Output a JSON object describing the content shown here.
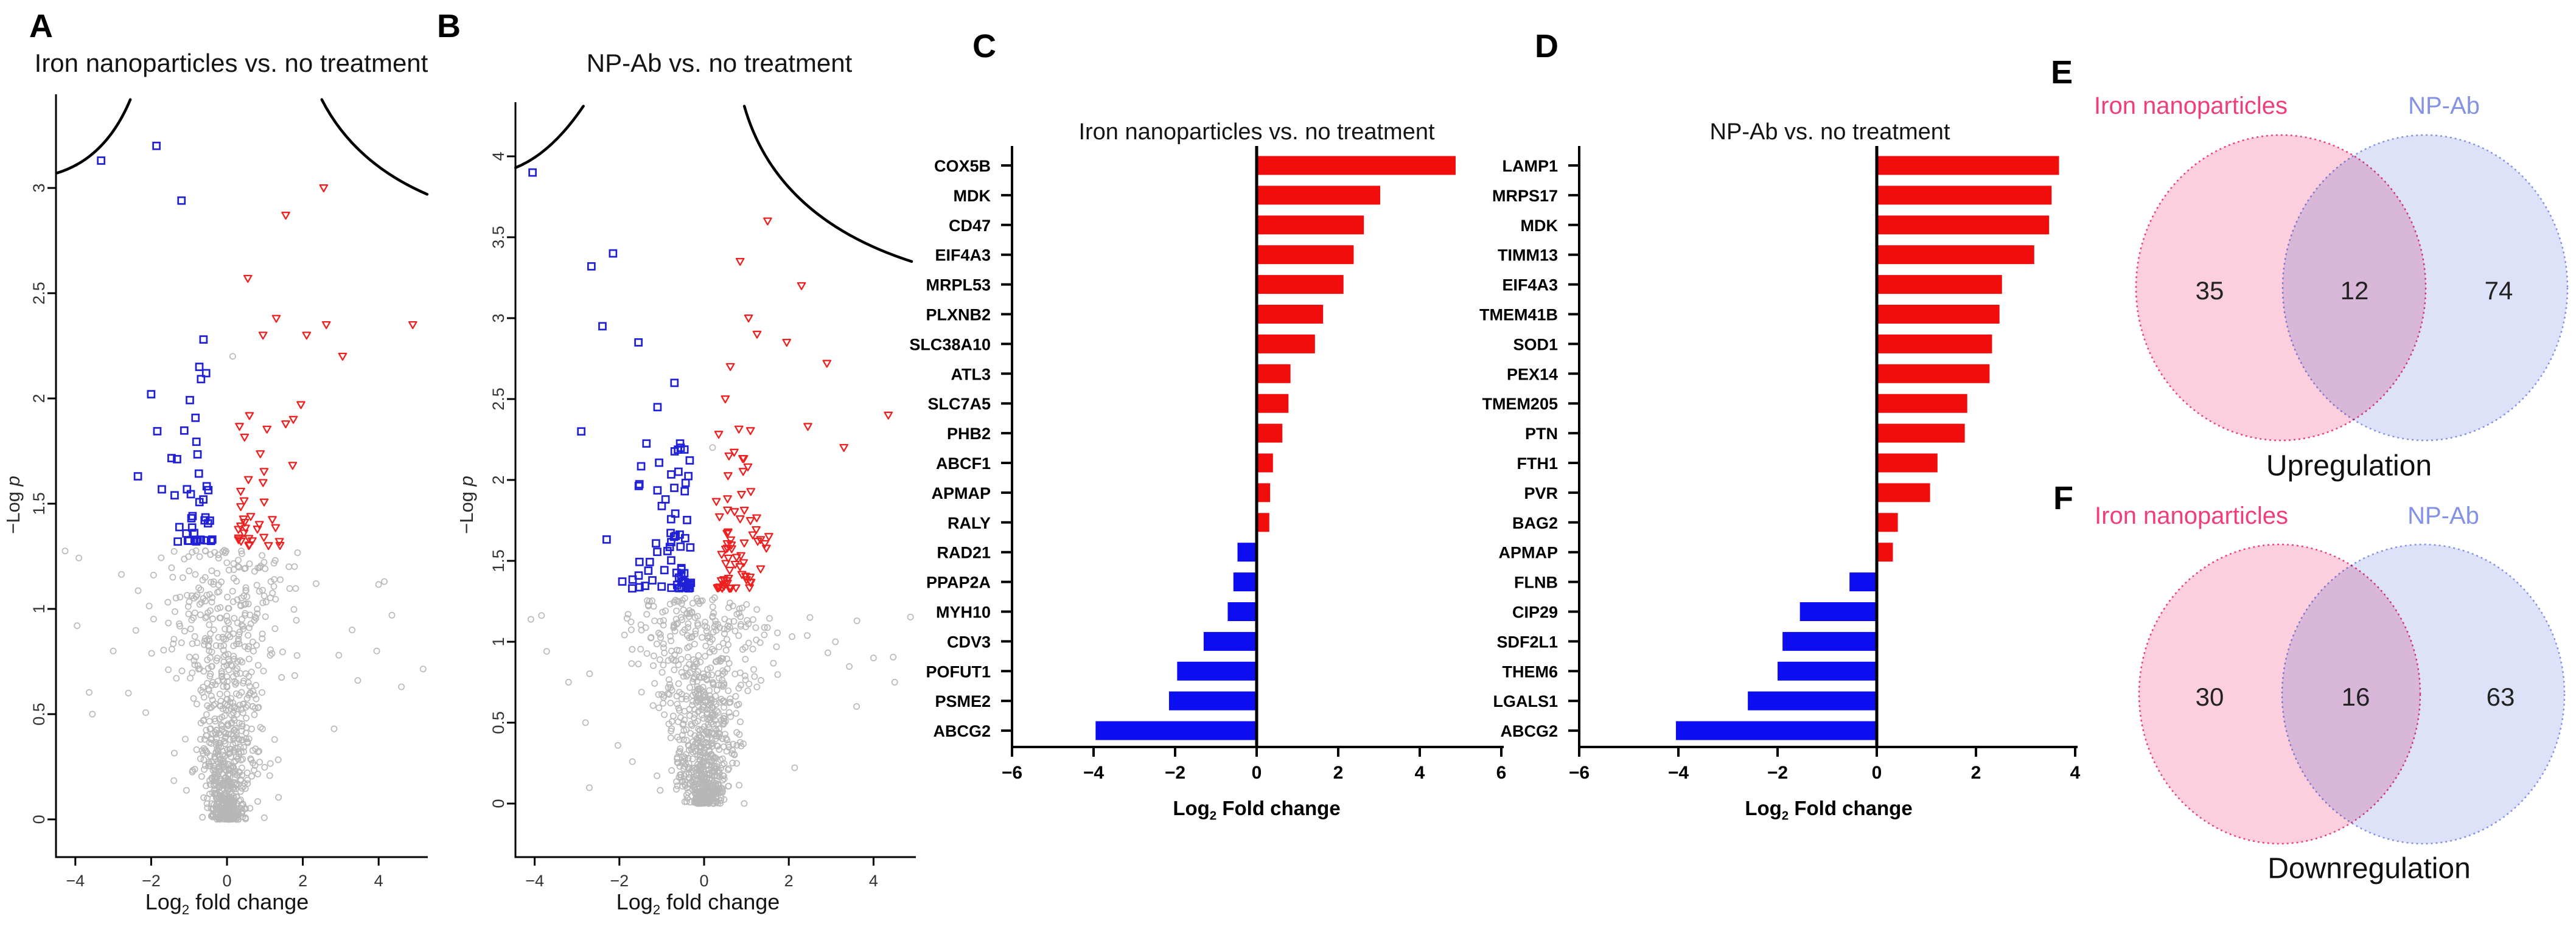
{
  "chart_data": [
    {
      "panel": "A",
      "type": "scatter",
      "subtype": "volcano",
      "title": "Iron nanoparticles vs. no treatment",
      "xlabel": "Log2 fold change",
      "xlabel_pre": "Log",
      "xlabel_sub": "2",
      "xlabel_post": " fold change",
      "ylabel": "-Log p",
      "ylabel_pre": "−Log ",
      "ylabel_it": "p",
      "xlim": [
        -4.5,
        5.3
      ],
      "ylim": [
        -0.18,
        3.44
      ],
      "x_ticks": [
        -4,
        -2,
        0,
        2,
        4
      ],
      "y_ticks": [
        0,
        0.5,
        1,
        1.5,
        2,
        2.5,
        3
      ],
      "grid": false,
      "legend": null,
      "threshold_curves": [
        {
          "p0": [
            -4.5,
            3.07
          ],
          "c": [
            -3.2,
            3.14
          ],
          "p1": [
            -2.55,
            3.42
          ]
        },
        {
          "p0": [
            2.5,
            3.42
          ],
          "c": [
            3.35,
            3.12
          ],
          "p1": [
            5.28,
            2.97
          ]
        }
      ],
      "series": [
        {
          "name": "downregulated-significant",
          "marker": "open-square",
          "color": "#2020d8",
          "count": 46,
          "gen": {
            "seed": 11,
            "off": 0.35,
            "sd": 0.62,
            "clip": [
              0.3,
              2.55
            ],
            "sign": -1,
            "y_base": 1.32,
            "y_pow": 2.3,
            "y_spread": 0.78
          },
          "points_extra": [
            [
              -3.32,
              3.13
            ],
            [
              -1.86,
              3.2
            ],
            [
              -1.2,
              2.94
            ],
            [
              -2.35,
              1.63
            ],
            [
              -2.0,
              2.02
            ],
            [
              -0.62,
              2.28
            ],
            [
              -0.73,
              2.15
            ],
            [
              -0.55,
              2.12
            ]
          ]
        },
        {
          "name": "upregulated-significant",
          "marker": "open-triangle-down",
          "color": "#ee2020",
          "count": 47,
          "gen": {
            "seed": 21,
            "off": 0.3,
            "sd": 0.55,
            "clip": [
              0.28,
              2.2
            ],
            "sign": 1,
            "y_base": 1.3,
            "y_pow": 2.3,
            "y_spread": 0.72
          },
          "points_extra": [
            [
              2.55,
              3.0
            ],
            [
              1.55,
              2.87
            ],
            [
              0.55,
              2.57
            ],
            [
              1.3,
              2.38
            ],
            [
              2.62,
              2.35
            ],
            [
              4.9,
              2.35
            ],
            [
              2.1,
              2.3
            ],
            [
              3.05,
              2.2
            ],
            [
              1.95,
              1.97
            ],
            [
              0.95,
              2.3
            ],
            [
              1.75,
              1.9
            ]
          ]
        },
        {
          "name": "not-significant",
          "marker": "open-circle",
          "color": "#b6b6b6",
          "count": 850,
          "gen": {
            "seed": 31,
            "funnel": true,
            "y_max": 1.28,
            "sd_base": 0.2,
            "sd_slope": 0.62,
            "outlier_frac": 0.06,
            "clip": [
              -4.35,
              5.2
            ]
          },
          "points_extra": [
            [
              0.15,
              2.2
            ],
            [
              2.35,
              1.12
            ],
            [
              4.35,
              0.97
            ],
            [
              3.95,
              0.8
            ],
            [
              4.6,
              0.63
            ],
            [
              3.45,
              0.66
            ],
            [
              2.95,
              0.78
            ],
            [
              -3.0,
              0.8
            ],
            [
              -3.55,
              0.5
            ],
            [
              4.15,
              1.13
            ],
            [
              -2.6,
              0.6
            ],
            [
              3.3,
              0.9
            ]
          ]
        }
      ]
    },
    {
      "panel": "B",
      "type": "scatter",
      "subtype": "volcano",
      "title": "NP-Ab vs. no treatment",
      "xlabel": "Log2 fold change",
      "xlabel_pre": "Log",
      "xlabel_sub": "2",
      "xlabel_post": " fold change",
      "ylabel": "-Log p",
      "ylabel_pre": "−Log ",
      "ylabel_it": "p",
      "xlim": [
        -4.45,
        5.0
      ],
      "ylim": [
        -0.33,
        4.33
      ],
      "x_ticks": [
        -4,
        -2,
        0,
        2,
        4
      ],
      "y_ticks": [
        0,
        0.5,
        1,
        1.5,
        2,
        2.5,
        3,
        3.5,
        4
      ],
      "grid": false,
      "legend": null,
      "threshold_curves": [
        {
          "p0": [
            -4.45,
            3.93
          ],
          "c": [
            -3.6,
            4.02
          ],
          "p1": [
            -2.85,
            4.31
          ]
        },
        {
          "p0": [
            0.95,
            4.31
          ],
          "c": [
            1.7,
            3.62
          ],
          "p1": [
            4.9,
            3.35
          ]
        }
      ],
      "series": [
        {
          "name": "downregulated-significant",
          "marker": "open-square",
          "color": "#2020d8",
          "count": 79,
          "gen": {
            "seed": 41,
            "off": 0.3,
            "sd": 0.72,
            "clip": [
              0.28,
              2.9
            ],
            "sign": -1,
            "y_base": 1.33,
            "y_pow": 2.4,
            "y_spread": 0.95
          },
          "points_extra": [
            [
              -4.05,
              3.9
            ],
            [
              -2.66,
              3.32
            ],
            [
              -2.15,
              3.4
            ],
            [
              -2.4,
              2.95
            ],
            [
              -1.55,
              2.85
            ],
            [
              -2.9,
              2.3
            ],
            [
              -0.7,
              2.6
            ],
            [
              -1.1,
              2.45
            ]
          ]
        },
        {
          "name": "upregulated-significant",
          "marker": "open-triangle-down",
          "color": "#ee2020",
          "count": 86,
          "gen": {
            "seed": 51,
            "off": 0.28,
            "sd": 0.6,
            "clip": [
              0.26,
              2.4
            ],
            "sign": 1,
            "y_base": 1.33,
            "y_pow": 2.4,
            "y_spread": 1.0
          },
          "points_extra": [
            [
              1.5,
              3.6
            ],
            [
              0.85,
              3.35
            ],
            [
              2.3,
              3.2
            ],
            [
              1.25,
              2.9
            ],
            [
              1.95,
              2.85
            ],
            [
              0.62,
              2.7
            ],
            [
              2.9,
              2.72
            ],
            [
              4.35,
              2.4
            ],
            [
              2.45,
              2.33
            ],
            [
              1.05,
              3.0
            ],
            [
              3.3,
              2.2
            ],
            [
              0.5,
              2.5
            ]
          ]
        },
        {
          "name": "not-significant",
          "marker": "open-circle",
          "color": "#b6b6b6",
          "count": 850,
          "gen": {
            "seed": 61,
            "funnel": true,
            "y_max": 1.28,
            "sd_base": 0.2,
            "sd_slope": 0.6,
            "outlier_frac": 0.06,
            "clip": [
              -4.3,
              4.9
            ]
          },
          "points_extra": [
            [
              0.2,
              2.2
            ],
            [
              2.5,
              1.15
            ],
            [
              4.0,
              0.9
            ],
            [
              -3.2,
              0.75
            ],
            [
              3.6,
              0.6
            ],
            [
              4.5,
              0.75
            ],
            [
              -2.8,
              0.5
            ],
            [
              3.1,
              1.0
            ]
          ]
        }
      ]
    },
    {
      "panel": "C",
      "type": "bar",
      "orientation": "horizontal",
      "title": "Iron nanoparticles vs. no treatment",
      "xlabel": "Log2 Fold change",
      "xlabel_pre": "Log",
      "xlabel_sub": "2",
      "xlabel_post": " Fold change",
      "categories": [
        "COX5B",
        "MDK",
        "CD47",
        "EIF4A3",
        "MRPL53",
        "PLXNB2",
        "SLC38A10",
        "ATL3",
        "SLC7A5",
        "PHB2",
        "ABCF1",
        "APMAP",
        "RALY",
        "RAD21",
        "PPAP2A",
        "MYH10",
        "CDV3",
        "POFUT1",
        "PSME2",
        "ABCG2"
      ],
      "values": [
        4.85,
        3.0,
        2.6,
        2.35,
        2.1,
        1.6,
        1.4,
        0.8,
        0.75,
        0.6,
        0.37,
        0.3,
        0.28,
        -0.47,
        -0.57,
        -0.71,
        -1.3,
        -1.95,
        -2.15,
        -3.95
      ],
      "xlim": [
        -6,
        6
      ],
      "x_ticks": [
        -6,
        -4,
        -2,
        0,
        2,
        4,
        6
      ],
      "positive_color": "#f20d0d",
      "negative_color": "#0d0df2",
      "grid": false
    },
    {
      "panel": "D",
      "type": "bar",
      "orientation": "horizontal",
      "title": "NP-Ab vs. no treatment",
      "xlabel": "Log2 Fold change",
      "xlabel_pre": "Log",
      "xlabel_sub": "2",
      "xlabel_post": " Fold change",
      "categories": [
        "LAMP1",
        "MRPS17",
        "MDK",
        "TIMM13",
        "EIF4A3",
        "TMEM41B",
        "SOD1",
        "PEX14",
        "TMEM205",
        "PTN",
        "FTH1",
        "PVR",
        "BAG2",
        "APMAP",
        "FLNB",
        "CIP29",
        "SDF2L1",
        "THEM6",
        "LGALS1",
        "ABCG2"
      ],
      "values": [
        3.65,
        3.5,
        3.45,
        3.15,
        2.5,
        2.45,
        2.3,
        2.25,
        1.8,
        1.75,
        1.2,
        1.05,
        0.4,
        0.3,
        -0.55,
        -1.55,
        -1.9,
        -2.0,
        -2.6,
        -4.05
      ],
      "xlim": [
        -6,
        4
      ],
      "x_ticks": [
        -6,
        -4,
        -2,
        0,
        2,
        4
      ],
      "positive_color": "#f20d0d",
      "negative_color": "#0d0df2",
      "grid": false
    },
    {
      "panel": "E",
      "type": "venn",
      "sets": [
        {
          "label": "Iron nanoparticles",
          "color": "#ef3e7b"
        },
        {
          "label": "NP-Ab",
          "color": "#8392e6"
        }
      ],
      "left_only": 35,
      "overlap": 12,
      "right_only": 74,
      "caption": "Upregulation"
    },
    {
      "panel": "F",
      "type": "venn",
      "sets": [
        {
          "label": "Iron nanoparticles",
          "color": "#ef3e7b"
        },
        {
          "label": "NP-Ab",
          "color": "#8392e6"
        }
      ],
      "left_only": 30,
      "overlap": 16,
      "right_only": 63,
      "caption": "Downregulation"
    }
  ]
}
